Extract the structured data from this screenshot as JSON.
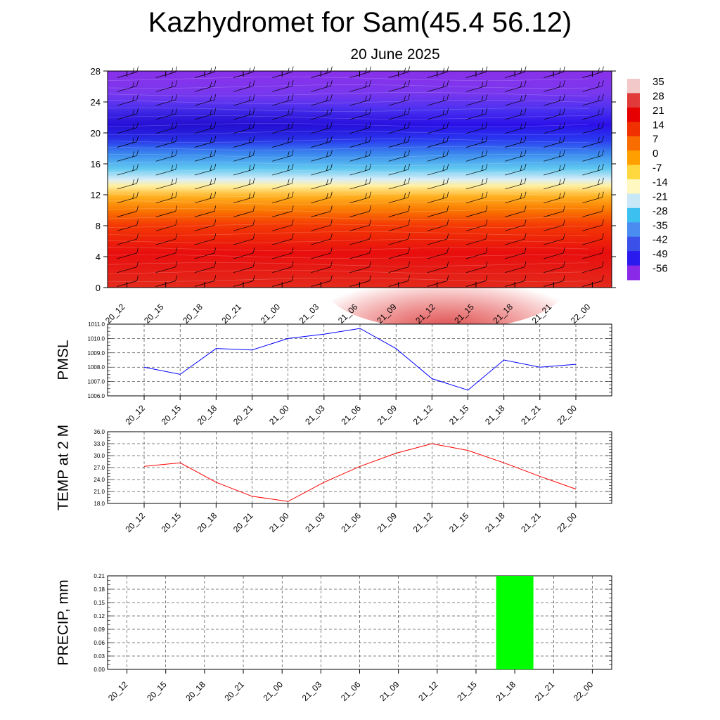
{
  "header": {
    "title": "Kazhydromet for Sam(45.4 56.12)",
    "date": "20 June 2025"
  },
  "chart_data": [
    {
      "type": "heatmap",
      "name": "temperature-height-section",
      "x_ticks": [
        "20_12",
        "20_15",
        "20_18",
        "20_21",
        "21_00",
        "21_03",
        "21_06",
        "21_09",
        "21_12",
        "21_15",
        "21_18",
        "21_21",
        "22_00"
      ],
      "y_ticks": [
        "0",
        "4",
        "8",
        "12",
        "16",
        "20",
        "24",
        "28"
      ],
      "ylim": [
        0,
        28
      ],
      "colorbar_labels": [
        "35",
        "28",
        "21",
        "14",
        "7",
        "0",
        "-7",
        "-14",
        "-21",
        "-28",
        "-35",
        "-42",
        "-49",
        "-56"
      ],
      "colorbar_colors": [
        "#f2c8c8",
        "#e23a3a",
        "#e60000",
        "#f03000",
        "#f86c00",
        "#ffa000",
        "#ffd840",
        "#fff8c0",
        "#c8e8f8",
        "#3cc0f0",
        "#4a8cf0",
        "#3a50e8",
        "#2a1aee",
        "#8a2ae8"
      ]
    },
    {
      "type": "line",
      "name": "pmsl",
      "ylabel": "PMSL",
      "x": [
        "20_12",
        "20_15",
        "20_18",
        "20_21",
        "21_00",
        "21_03",
        "21_06",
        "21_09",
        "21_12",
        "21_15",
        "21_18",
        "21_21",
        "22_00"
      ],
      "series": [
        {
          "values": [
            1008.0,
            1007.5,
            1009.3,
            1009.2,
            1010.0,
            1010.3,
            1010.7,
            1009.3,
            1007.2,
            1006.4,
            1008.5,
            1008.0,
            1008.2
          ],
          "color": "#0000ff"
        }
      ],
      "ylim": [
        1006.0,
        1011.0
      ],
      "y_ticks": [
        "1006.0",
        "1007.0",
        "1008.0",
        "1009.0",
        "1010.0",
        "1011.0"
      ],
      "grid": true
    },
    {
      "type": "line",
      "name": "temp-2m",
      "ylabel": "TEMP at 2 M",
      "x": [
        "20_12",
        "20_15",
        "20_18",
        "20_21",
        "21_00",
        "21_03",
        "21_06",
        "21_09",
        "21_12",
        "21_15",
        "21_18",
        "21_21",
        "22_00"
      ],
      "series": [
        {
          "values": [
            27.3,
            28.2,
            23.3,
            19.8,
            18.5,
            23.3,
            27.3,
            30.6,
            33.0,
            31.3,
            28.2,
            24.8,
            21.6
          ],
          "color": "#ff0000"
        }
      ],
      "ylim": [
        18.0,
        36.0
      ],
      "y_ticks": [
        "18.0",
        "21.0",
        "24.0",
        "27.0",
        "30.0",
        "33.0",
        "36.0"
      ],
      "grid": true
    },
    {
      "type": "bar",
      "name": "precip",
      "ylabel": "PRECIP, mm",
      "categories": [
        "20_12",
        "20_15",
        "20_18",
        "20_21",
        "21_00",
        "21_03",
        "21_06",
        "21_09",
        "21_12",
        "21_15",
        "21_18",
        "21_21",
        "22_00"
      ],
      "values": [
        0,
        0,
        0,
        0,
        0,
        0,
        0,
        0,
        0,
        0,
        0.21,
        0,
        0
      ],
      "bar_color": "#00ff00",
      "ylim": [
        0,
        0.21
      ],
      "y_ticks": [
        "0.00",
        "0.03",
        "0.06",
        "0.09",
        "0.12",
        "0.15",
        "0.18",
        "0.21"
      ],
      "grid": true
    }
  ]
}
